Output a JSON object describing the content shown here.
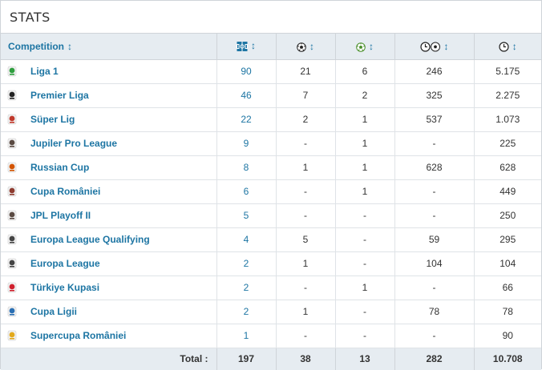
{
  "title": "STATS",
  "header": {
    "competition_label": "Competition",
    "sort_glyph": "↕",
    "icons": [
      "appearances-icon",
      "goals-icon",
      "assists-icon",
      "minutes-per-goal-icon",
      "minutes-played-icon"
    ]
  },
  "rows": [
    {
      "competition": "Liga 1",
      "logo": "liga-1-logo",
      "apps": "90",
      "goals": "21",
      "assists": "6",
      "mpg": "246",
      "minutes": "5.175",
      "color": "#2e9e3e"
    },
    {
      "competition": "Premier Liga",
      "logo": "premier-liga-logo",
      "apps": "46",
      "goals": "7",
      "assists": "2",
      "mpg": "325",
      "minutes": "2.275",
      "color": "#222222"
    },
    {
      "competition": "Süper Lig",
      "logo": "super-lig-logo",
      "apps": "22",
      "goals": "2",
      "assists": "1",
      "mpg": "537",
      "minutes": "1.073",
      "color": "#c0392b"
    },
    {
      "competition": "Jupiler Pro League",
      "logo": "jupiler-pro-league-logo",
      "apps": "9",
      "goals": "-",
      "assists": "1",
      "mpg": "-",
      "minutes": "225",
      "color": "#5a4a42"
    },
    {
      "competition": "Russian Cup",
      "logo": "russian-cup-logo",
      "apps": "8",
      "goals": "1",
      "assists": "1",
      "mpg": "628",
      "minutes": "628",
      "color": "#d35400"
    },
    {
      "competition": "Cupa României",
      "logo": "cupa-romaniei-logo",
      "apps": "6",
      "goals": "-",
      "assists": "1",
      "mpg": "-",
      "minutes": "449",
      "color": "#8e3b2f"
    },
    {
      "competition": "JPL Playoff II",
      "logo": "jpl-playoff-ii-logo",
      "apps": "5",
      "goals": "-",
      "assists": "-",
      "mpg": "-",
      "minutes": "250",
      "color": "#5a4a42"
    },
    {
      "competition": "Europa League Qualifying",
      "logo": "europa-league-qualifying-logo",
      "apps": "4",
      "goals": "5",
      "assists": "-",
      "mpg": "59",
      "minutes": "295",
      "color": "#444444"
    },
    {
      "competition": "Europa League",
      "logo": "europa-league-logo",
      "apps": "2",
      "goals": "1",
      "assists": "-",
      "mpg": "104",
      "minutes": "104",
      "color": "#444444"
    },
    {
      "competition": "Türkiye Kupasi",
      "logo": "turkiye-kupasi-logo",
      "apps": "2",
      "goals": "-",
      "assists": "1",
      "mpg": "-",
      "minutes": "66",
      "color": "#d0202e"
    },
    {
      "competition": "Cupa Ligii",
      "logo": "cupa-ligii-logo",
      "apps": "2",
      "goals": "1",
      "assists": "-",
      "mpg": "78",
      "minutes": "78",
      "color": "#2a6fb3"
    },
    {
      "competition": "Supercupa României",
      "logo": "supercupa-romaniei-logo",
      "apps": "1",
      "goals": "-",
      "assists": "-",
      "mpg": "-",
      "minutes": "90",
      "color": "#e2a91c"
    }
  ],
  "totals": {
    "label": "Total :",
    "apps": "197",
    "goals": "38",
    "assists": "13",
    "mpg": "282",
    "minutes": "10.708"
  }
}
